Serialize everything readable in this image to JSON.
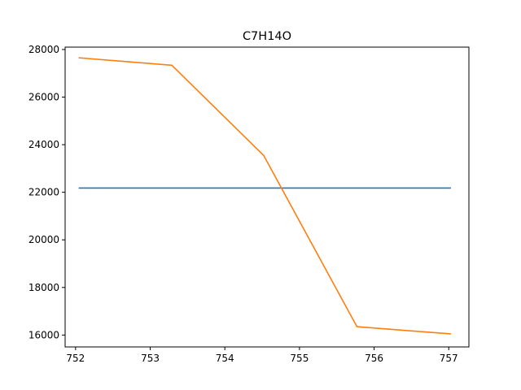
{
  "chart_data": {
    "type": "line",
    "title": "C7H14O",
    "xlabel": "",
    "ylabel": "",
    "x": [
      752.05,
      753.29,
      754.52,
      755.77,
      757.02
    ],
    "xlim": [
      751.86,
      757.27
    ],
    "ylim": [
      15500,
      28100
    ],
    "xticks": [
      752,
      753,
      754,
      755,
      756,
      757
    ],
    "yticks": [
      16000,
      18000,
      20000,
      22000,
      24000,
      26000,
      28000
    ],
    "grid": false,
    "series": [
      {
        "color": "#1f77b4",
        "values": [
          22180,
          22180,
          22180,
          22180,
          22180
        ]
      },
      {
        "color": "#ff7f0e",
        "values": [
          27650,
          27340,
          23550,
          16350,
          16050
        ]
      }
    ]
  }
}
